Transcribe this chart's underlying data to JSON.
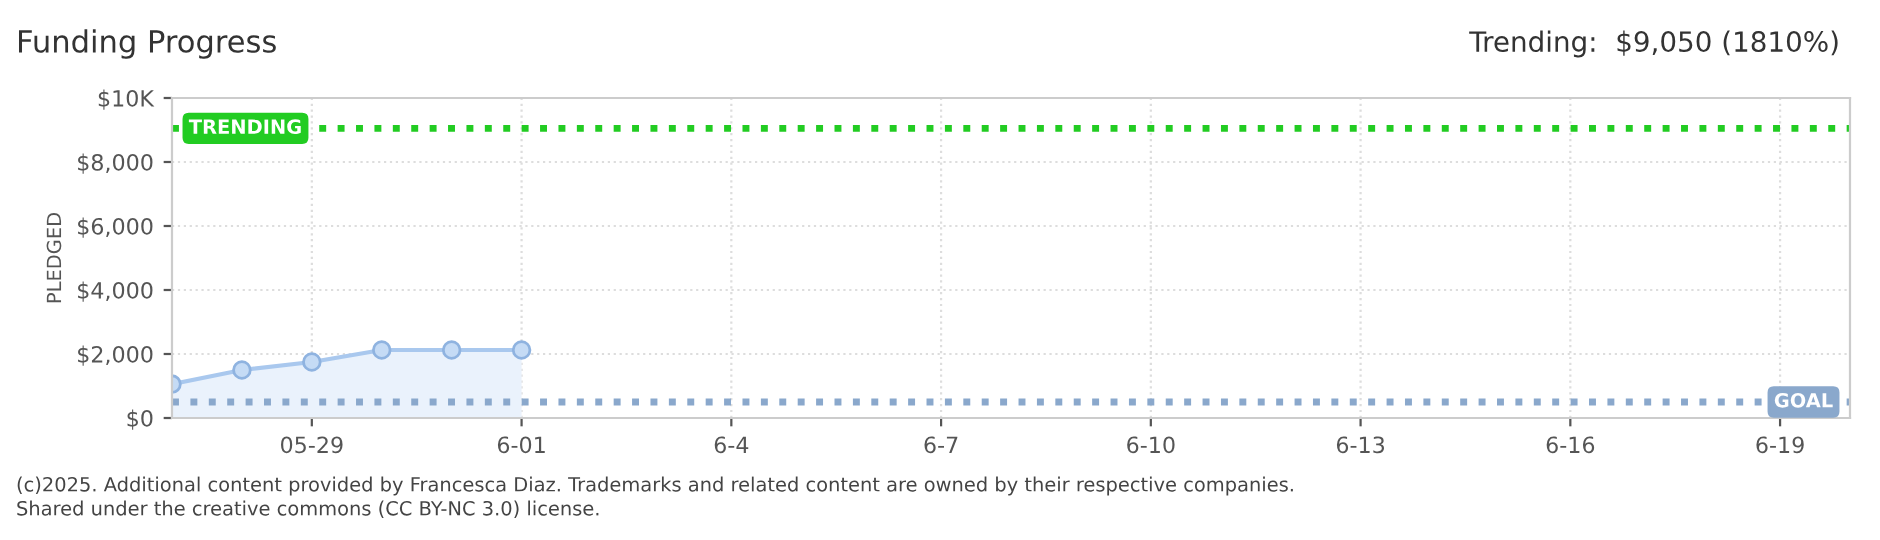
{
  "chart_data": {
    "type": "area",
    "title": "Funding Progress",
    "subtitle": "Trending:  $9,050 (1810%)",
    "ylabel": "PLEDGED",
    "x": [
      "2025-05-27",
      "2025-05-28",
      "2025-05-29",
      "2025-05-30",
      "2025-05-31",
      "2025-06-01"
    ],
    "series": [
      {
        "color": "#a9c8ee",
        "values": [
          1060,
          1500,
          1750,
          2125,
          2125,
          2125
        ]
      }
    ],
    "marker": "circle",
    "line_style": "solid",
    "grid": true,
    "xlim": [
      "2025-05-27",
      "2025-06-20"
    ],
    "xticks": [
      {
        "value": "2025-05-29",
        "label": "05-29"
      },
      {
        "value": "2025-06-01",
        "label": "6-01"
      },
      {
        "value": "2025-06-04",
        "label": "6-4"
      },
      {
        "value": "2025-06-07",
        "label": "6-7"
      },
      {
        "value": "2025-06-10",
        "label": "6-10"
      },
      {
        "value": "2025-06-13",
        "label": "6-13"
      },
      {
        "value": "2025-06-16",
        "label": "6-16"
      },
      {
        "value": "2025-06-19",
        "label": "6-19"
      }
    ],
    "ylim": [
      0,
      10000
    ],
    "yticks": [
      {
        "value": 0,
        "label": "$0"
      },
      {
        "value": 2000,
        "label": "$2,000"
      },
      {
        "value": 4000,
        "label": "$4,000"
      },
      {
        "value": 6000,
        "label": "$6,000"
      },
      {
        "value": 8000,
        "label": "$8,000"
      },
      {
        "value": 10000,
        "label": "$10K"
      }
    ],
    "ref_lines": [
      {
        "axis": "y",
        "value": 9050,
        "label": "TRENDING",
        "color": "#22cc22",
        "line_style": "dotted"
      },
      {
        "axis": "y",
        "value": 500,
        "label": "GOAL",
        "color": "#8aa8cc",
        "line_style": "dotted"
      }
    ],
    "annotations": [
      "(c)2025. Additional content provided by Francesca Diaz. Trademarks and related content are owned by their respective companies.",
      "Shared under the creative commons (CC BY-NC 3.0) license."
    ]
  }
}
